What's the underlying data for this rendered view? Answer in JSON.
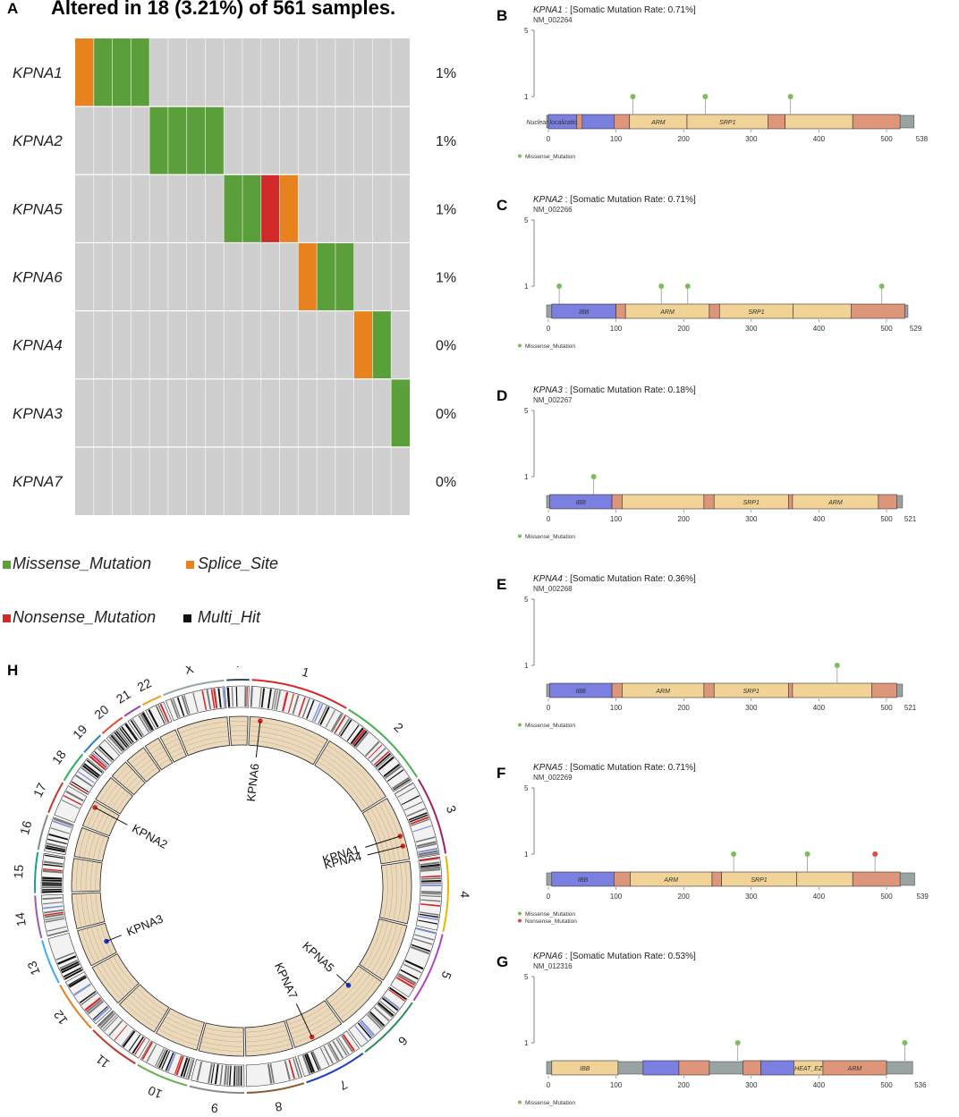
{
  "panel_a": {
    "label": "A",
    "title": "Altered in 18 (3.21%) of 561 samples.",
    "genes": [
      "KPNA1",
      "KPNA2",
      "KPNA5",
      "KPNA6",
      "KPNA4",
      "KPNA3",
      "KPNA7"
    ],
    "percents": [
      "1%",
      "1%",
      "1%",
      "1%",
      "0%",
      "0%",
      "0%"
    ],
    "legend": [
      {
        "label": "Missense_Mutation",
        "color": "#5b9f3b"
      },
      {
        "label": "Splice_Site",
        "color": "#e8821f"
      },
      {
        "label": "Nonsense_Mutation",
        "color": "#d12a2a"
      },
      {
        "label": "Multi_Hit",
        "color": "#111111"
      }
    ],
    "colors": {
      "missense": "#5b9f3b",
      "splice": "#e8821f",
      "nonsense": "#d12a2a",
      "background": "#cfcfcf"
    },
    "cells": [
      {
        "gene": 0,
        "sample": 0,
        "type": "splice"
      },
      {
        "gene": 0,
        "sample": 1,
        "type": "missense"
      },
      {
        "gene": 0,
        "sample": 2,
        "type": "missense"
      },
      {
        "gene": 0,
        "sample": 3,
        "type": "missense"
      },
      {
        "gene": 1,
        "sample": 4,
        "type": "missense"
      },
      {
        "gene": 1,
        "sample": 5,
        "type": "missense"
      },
      {
        "gene": 1,
        "sample": 6,
        "type": "missense"
      },
      {
        "gene": 1,
        "sample": 7,
        "type": "missense"
      },
      {
        "gene": 2,
        "sample": 8,
        "type": "missense"
      },
      {
        "gene": 2,
        "sample": 9,
        "type": "missense"
      },
      {
        "gene": 2,
        "sample": 10,
        "type": "nonsense"
      },
      {
        "gene": 2,
        "sample": 11,
        "type": "splice"
      },
      {
        "gene": 3,
        "sample": 12,
        "type": "splice"
      },
      {
        "gene": 3,
        "sample": 13,
        "type": "missense"
      },
      {
        "gene": 3,
        "sample": 14,
        "type": "missense"
      },
      {
        "gene": 4,
        "sample": 15,
        "type": "splice"
      },
      {
        "gene": 4,
        "sample": 16,
        "type": "missense"
      },
      {
        "gene": 5,
        "sample": 17,
        "type": "missense"
      }
    ],
    "n_samples_shown": 18
  },
  "lollipops": [
    {
      "label": "B",
      "gene": "KPNA1",
      "rate": " : [Somatic Mutation Rate: 0.71%]",
      "transcript": "NM_002264",
      "length": 538,
      "ticks": [
        0,
        100,
        200,
        300,
        400,
        500
      ],
      "domains": [
        {
          "start": 0,
          "end": 42,
          "color": "#7b7fe0",
          "label": "Nuclear localization signal"
        },
        {
          "start": 42,
          "end": 50,
          "color": "#de967a",
          "label": ""
        },
        {
          "start": 50,
          "end": 97,
          "color": "#7b7fe0",
          "label": ""
        },
        {
          "start": 97,
          "end": 120,
          "color": "#de967a",
          "label": ""
        },
        {
          "start": 120,
          "end": 205,
          "color": "#f1d398",
          "label": "ARM"
        },
        {
          "start": 205,
          "end": 325,
          "color": "#f1d398",
          "label": "SRP1"
        },
        {
          "start": 325,
          "end": 350,
          "color": "#de967a",
          "label": ""
        },
        {
          "start": 350,
          "end": 450,
          "color": "#f1d398",
          "label": ""
        },
        {
          "start": 450,
          "end": 520,
          "color": "#de967a",
          "label": ""
        }
      ],
      "mutations": [
        {
          "pos": 125,
          "type": "missense"
        },
        {
          "pos": 232,
          "type": "missense"
        },
        {
          "pos": 358,
          "type": "missense"
        }
      ],
      "legend": [
        "Missense_Mutation"
      ]
    },
    {
      "label": "C",
      "gene": "KPNA2",
      "rate": " : [Somatic Mutation Rate: 0.71%]",
      "transcript": "NM_002266",
      "length": 529,
      "ticks": [
        0,
        100,
        200,
        300,
        400,
        500
      ],
      "domains": [
        {
          "start": 5,
          "end": 100,
          "color": "#7b7fe0",
          "label": "IBB"
        },
        {
          "start": 100,
          "end": 114,
          "color": "#de967a",
          "label": ""
        },
        {
          "start": 114,
          "end": 238,
          "color": "#f1d398",
          "label": "ARM"
        },
        {
          "start": 238,
          "end": 253,
          "color": "#de967a",
          "label": ""
        },
        {
          "start": 253,
          "end": 362,
          "color": "#f1d398",
          "label": "SRP1"
        },
        {
          "start": 362,
          "end": 448,
          "color": "#f1d398",
          "label": ""
        },
        {
          "start": 448,
          "end": 527,
          "color": "#de967a",
          "label": ""
        }
      ],
      "mutations": [
        {
          "pos": 16,
          "type": "missense"
        },
        {
          "pos": 167,
          "type": "missense"
        },
        {
          "pos": 206,
          "type": "missense"
        },
        {
          "pos": 493,
          "type": "missense"
        }
      ],
      "legend": [
        "Missense_Mutation"
      ]
    },
    {
      "label": "D",
      "gene": "KPNA3",
      "rate": " : [Somatic Mutation Rate: 0.18%]",
      "transcript": "NM_002267",
      "length": 521,
      "ticks": [
        0,
        100,
        200,
        300,
        400,
        500
      ],
      "domains": [
        {
          "start": 2,
          "end": 94,
          "color": "#7b7fe0",
          "label": "IBB"
        },
        {
          "start": 94,
          "end": 109,
          "color": "#de967a",
          "label": ""
        },
        {
          "start": 109,
          "end": 230,
          "color": "#f1d398",
          "label": ""
        },
        {
          "start": 230,
          "end": 245,
          "color": "#de967a",
          "label": ""
        },
        {
          "start": 245,
          "end": 355,
          "color": "#f1d398",
          "label": "SRP1"
        },
        {
          "start": 355,
          "end": 361,
          "color": "#de967a",
          "label": ""
        },
        {
          "start": 361,
          "end": 488,
          "color": "#f1d398",
          "label": "ARM"
        },
        {
          "start": 488,
          "end": 515,
          "color": "#de967a",
          "label": ""
        }
      ],
      "mutations": [
        {
          "pos": 67,
          "type": "missense"
        }
      ],
      "legend": [
        "Missense_Mutation"
      ]
    },
    {
      "label": "E",
      "gene": "KPNA4",
      "rate": " : [Somatic Mutation Rate: 0.36%]",
      "transcript": "NM_002268",
      "length": 521,
      "ticks": [
        0,
        100,
        200,
        300,
        400,
        500
      ],
      "domains": [
        {
          "start": 2,
          "end": 94,
          "color": "#7b7fe0",
          "label": "IBB"
        },
        {
          "start": 94,
          "end": 109,
          "color": "#de967a",
          "label": ""
        },
        {
          "start": 109,
          "end": 230,
          "color": "#f1d398",
          "label": "ARM"
        },
        {
          "start": 230,
          "end": 245,
          "color": "#de967a",
          "label": ""
        },
        {
          "start": 245,
          "end": 355,
          "color": "#f1d398",
          "label": "SRP1"
        },
        {
          "start": 355,
          "end": 361,
          "color": "#de967a",
          "label": ""
        },
        {
          "start": 361,
          "end": 478,
          "color": "#f1d398",
          "label": ""
        },
        {
          "start": 478,
          "end": 515,
          "color": "#de967a",
          "label": ""
        }
      ],
      "mutations": [
        {
          "pos": 427,
          "type": "missense"
        }
      ],
      "legend": [
        "Missense_Mutation"
      ]
    },
    {
      "label": "F",
      "gene": "KPNA5",
      "rate": " : [Somatic Mutation Rate: 0.71%]",
      "transcript": "NM_002269",
      "length": 539,
      "ticks": [
        0,
        100,
        200,
        300,
        400,
        500
      ],
      "domains": [
        {
          "start": 5,
          "end": 97,
          "color": "#7b7fe0",
          "label": "IBB"
        },
        {
          "start": 97,
          "end": 121,
          "color": "#de967a",
          "label": ""
        },
        {
          "start": 121,
          "end": 242,
          "color": "#f1d398",
          "label": "ARM"
        },
        {
          "start": 242,
          "end": 256,
          "color": "#de967a",
          "label": ""
        },
        {
          "start": 256,
          "end": 367,
          "color": "#f1d398",
          "label": "SRP1"
        },
        {
          "start": 367,
          "end": 450,
          "color": "#f1d398",
          "label": ""
        },
        {
          "start": 450,
          "end": 520,
          "color": "#de967a",
          "label": ""
        }
      ],
      "mutations": [
        {
          "pos": 274,
          "type": "missense"
        },
        {
          "pos": 383,
          "type": "missense"
        },
        {
          "pos": 483,
          "type": "nonsense"
        }
      ],
      "legend": [
        "Missense_Mutation",
        "Nonsense_Mutation"
      ]
    },
    {
      "label": "G",
      "gene": "KPNA6",
      "rate": " : [Somatic Mutation Rate: 0.53%]",
      "transcript": "NM_012316",
      "length": 536,
      "ticks": [
        0,
        100,
        200,
        300,
        400,
        500
      ],
      "domains": [
        {
          "start": 5,
          "end": 103,
          "color": "#f1d398",
          "label": "IBB"
        },
        {
          "start": 140,
          "end": 193,
          "color": "#7b7fe0",
          "label": ""
        },
        {
          "start": 193,
          "end": 238,
          "color": "#de967a",
          "label": ""
        },
        {
          "start": 288,
          "end": 314,
          "color": "#de967a",
          "label": ""
        },
        {
          "start": 314,
          "end": 363,
          "color": "#7b7fe0",
          "label": ""
        },
        {
          "start": 363,
          "end": 406,
          "color": "#f1d398",
          "label": "HEAT_EZ"
        },
        {
          "start": 406,
          "end": 500,
          "color": "#de967a",
          "label": "ARM"
        }
      ],
      "mutations": [
        {
          "pos": 280,
          "type": "missense"
        },
        {
          "pos": 527,
          "type": "missense"
        }
      ],
      "legend": [
        "Missense_Mutation"
      ]
    }
  ],
  "lolli_axis": {
    "y_ticks": [
      "5",
      "1"
    ]
  },
  "lolli_colors": {
    "missense": "#7ebd5b",
    "nonsense": "#d94a4a",
    "backbone": "#9aa3a3"
  },
  "circos": {
    "label": "H",
    "chromosomes": [
      {
        "name": "1",
        "size": 248
      },
      {
        "name": "2",
        "size": 242
      },
      {
        "name": "3",
        "size": 198
      },
      {
        "name": "4",
        "size": 190
      },
      {
        "name": "5",
        "size": 181
      },
      {
        "name": "6",
        "size": 171
      },
      {
        "name": "7",
        "size": 159
      },
      {
        "name": "8",
        "size": 145
      },
      {
        "name": "9",
        "size": 138
      },
      {
        "name": "10",
        "size": 134
      },
      {
        "name": "11",
        "size": 135
      },
      {
        "name": "12",
        "size": 133
      },
      {
        "name": "13",
        "size": 114
      },
      {
        "name": "14",
        "size": 107
      },
      {
        "name": "15",
        "size": 102
      },
      {
        "name": "16",
        "size": 90
      },
      {
        "name": "17",
        "size": 83
      },
      {
        "name": "18",
        "size": 80
      },
      {
        "name": "19",
        "size": 59
      },
      {
        "name": "20",
        "size": 64
      },
      {
        "name": "21",
        "size": 47
      },
      {
        "name": "22",
        "size": 51
      },
      {
        "name": "X",
        "size": 156
      },
      {
        "name": "Y",
        "size": 57
      }
    ],
    "chrom_colors": [
      "#d62728",
      "#4caf50",
      "#a02060",
      "#e6b800",
      "#b03fc9",
      "#2e8b57",
      "#1f3fbf",
      "#8b5a2b",
      "#888888",
      "#6ab04c",
      "#c0392b",
      "#e67e22",
      "#3fa9f5",
      "#9b59b6",
      "#16a085",
      "#7f8c8d",
      "#c0392b",
      "#27ae60",
      "#2980b9",
      "#e74c3c",
      "#8e44ad",
      "#f39c12",
      "#95a5a6",
      "#34495e"
    ],
    "genes": [
      {
        "name": "KPNA6",
        "chrom": 0,
        "pos": 0.13,
        "type": "nonsense"
      },
      {
        "name": "KPNA1",
        "chrom": 2,
        "pos": 0.62,
        "type": "nonsense"
      },
      {
        "name": "KPNA4",
        "chrom": 2,
        "pos": 0.78,
        "type": "nonsense"
      },
      {
        "name": "KPNA5",
        "chrom": 5,
        "pos": 0.45,
        "type": "blue"
      },
      {
        "name": "KPNA7",
        "chrom": 6,
        "pos": 0.62,
        "type": "nonsense"
      },
      {
        "name": "KPNA3",
        "chrom": 12,
        "pos": 0.45,
        "type": "blue"
      },
      {
        "name": "KPNA2",
        "chrom": 16,
        "pos": 0.8,
        "type": "nonsense"
      }
    ]
  }
}
